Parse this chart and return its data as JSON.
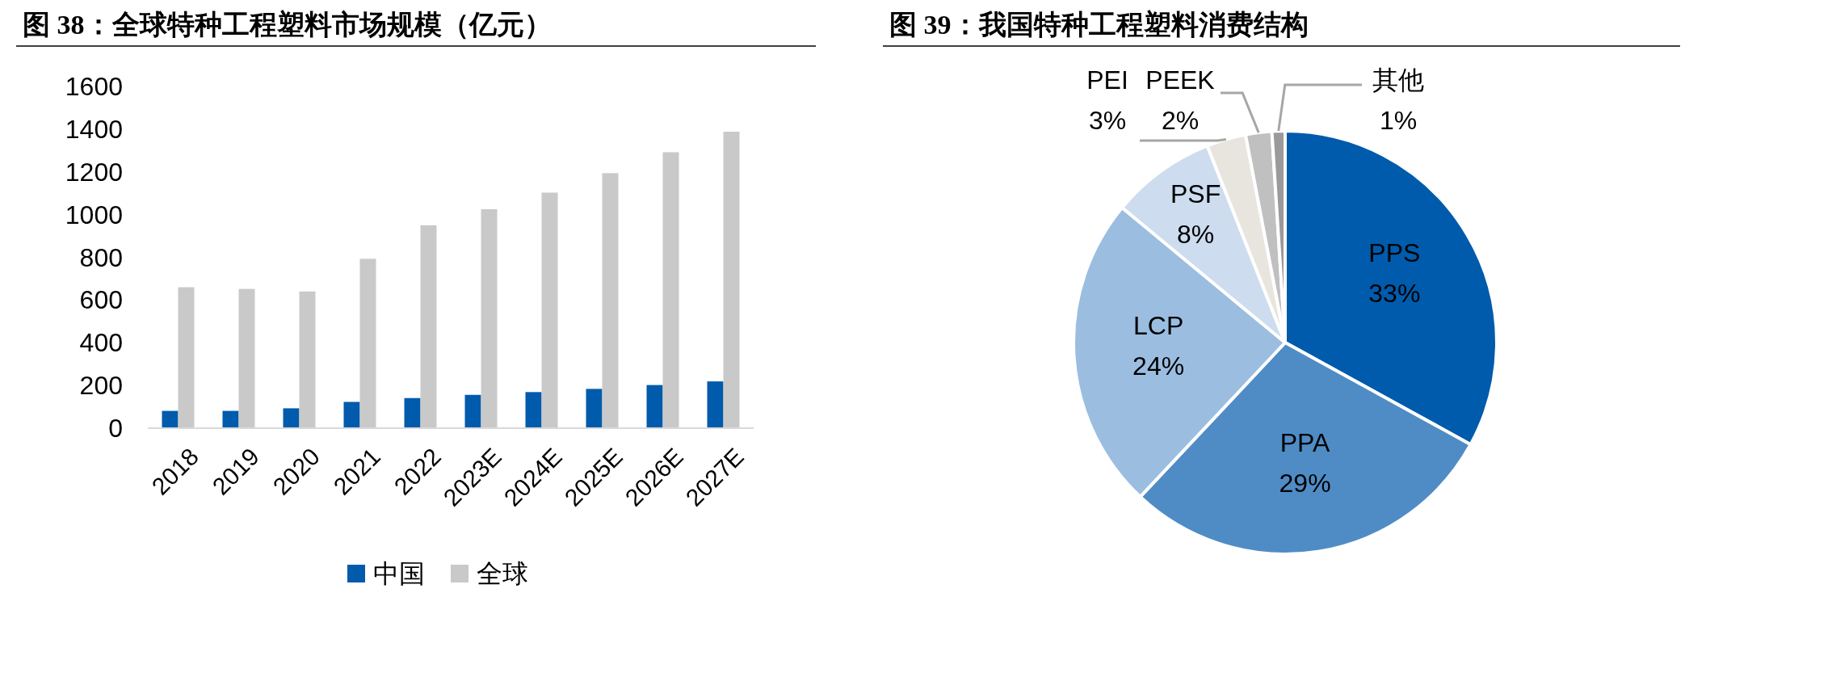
{
  "chart_data": [
    {
      "type": "bar",
      "title": "图 38：全球特种工程塑料市场规模（亿元）",
      "categories": [
        "2018",
        "2019",
        "2020",
        "2021",
        "2022",
        "2023E",
        "2024E",
        "2025E",
        "2026E",
        "2027E"
      ],
      "series": [
        {
          "name": "中国",
          "color": "#005bac",
          "values": [
            81,
            81,
            93,
            123,
            141,
            156,
            169,
            184,
            202,
            219
          ]
        },
        {
          "name": "全球",
          "color": "#c9c9c9",
          "values": [
            660,
            652,
            640,
            793,
            950,
            1025,
            1103,
            1194,
            1292,
            1388
          ]
        }
      ],
      "ylim": [
        0,
        1600
      ],
      "yticks": [
        0,
        200,
        400,
        600,
        800,
        1000,
        1200,
        1400,
        1600
      ],
      "grid": false,
      "legend": "bottom"
    },
    {
      "type": "pie",
      "title": "图 39：我国特种工程塑料消费结构",
      "categories": [
        "PPS",
        "PPA",
        "LCP",
        "PSF",
        "PEI",
        "PEEK",
        "其他"
      ],
      "values": [
        33,
        29,
        24,
        8,
        3,
        2,
        1
      ],
      "colors": [
        "#005bac",
        "#4f8cc6",
        "#9bbde0",
        "#cddcee",
        "#e8e5df",
        "#c0c0c0",
        "#9a9a9a"
      ],
      "value_labels": [
        "33%",
        "29%",
        "24%",
        "8%",
        "3%",
        "2%",
        "1%"
      ]
    }
  ]
}
